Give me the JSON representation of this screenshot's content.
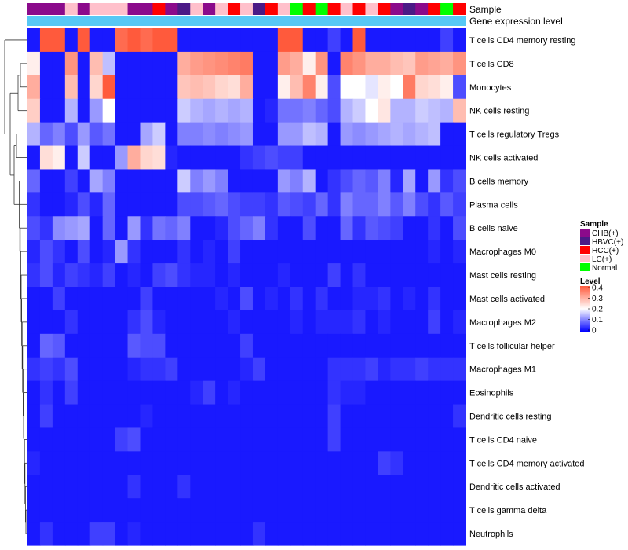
{
  "chart_data": {
    "type": "heatmap",
    "title": "",
    "annotation_labels": [
      "Sample",
      "Gene expression level"
    ],
    "columns": 35,
    "sample_groups": [
      "CHB(+)",
      "CHB(+)",
      "CHB(+)",
      "LC(+)",
      "CHB(+)",
      "LC(+)",
      "LC(+)",
      "LC(+)",
      "CHB(+)",
      "CHB(+)",
      "HCC(+)",
      "CHB(+)",
      "HBVC(+)",
      "LC(+)",
      "CHB(+)",
      "LC(+)",
      "HCC(+)",
      "LC(+)",
      "HBVC(+)",
      "HCC(+)",
      "LC(+)",
      "Normal",
      "HCC(+)",
      "Normal",
      "HCC(+)",
      "LC(+)",
      "HCC(+)",
      "LC(+)",
      "HCC(+)",
      "CHB(+)",
      "HBVC(+)",
      "CHB(+)",
      "HCC(+)",
      "Normal",
      "HCC(+)"
    ],
    "rows": [
      "T cells CD4 memory resting",
      "T cells CD8",
      "Monocytes",
      "NK cells resting",
      "T cells regulatory  Tregs",
      "NK cells activated",
      "B cells memory",
      "Plasma cells",
      "B cells naive",
      "Macrophages M0",
      "Mast cells resting",
      "Mast cells activated",
      "Macrophages M2",
      "T cells follicular helper",
      "Macrophages M1",
      "Eosinophils",
      "Dendritic cells resting",
      "T cells CD4 naive",
      "T cells CD4 memory activated",
      "Dendritic cells activated",
      "T cells gamma delta",
      "Neutrophils"
    ],
    "values": [
      [
        0.02,
        0.4,
        0.4,
        0.02,
        0.4,
        0.02,
        0.02,
        0.38,
        0.4,
        0.38,
        0.4,
        0.4,
        0.02,
        0.02,
        0.02,
        0.02,
        0.02,
        0.02,
        0.02,
        0.02,
        0.4,
        0.4,
        0.02,
        0.02,
        0.05,
        0.02,
        0.4,
        0.02,
        0.02,
        0.02,
        0.02,
        0.02,
        0.02,
        0.05,
        0.02
      ],
      [
        0.22,
        0.02,
        0.02,
        0.33,
        0.02,
        0.28,
        0.15,
        0.02,
        0.02,
        0.02,
        0.02,
        0.02,
        0.3,
        0.32,
        0.33,
        0.34,
        0.35,
        0.36,
        0.02,
        0.02,
        0.32,
        0.3,
        0.22,
        0.33,
        0.02,
        0.35,
        0.33,
        0.3,
        0.3,
        0.28,
        0.27,
        0.32,
        0.31,
        0.3,
        0.33
      ],
      [
        0.3,
        0.02,
        0.02,
        0.28,
        0.02,
        0.25,
        0.4,
        0.02,
        0.02,
        0.02,
        0.02,
        0.02,
        0.27,
        0.28,
        0.27,
        0.25,
        0.24,
        0.3,
        0.02,
        0.02,
        0.22,
        0.28,
        0.35,
        0.22,
        0.06,
        0.2,
        0.2,
        0.18,
        0.22,
        0.2,
        0.36,
        0.25,
        0.24,
        0.22,
        0.06
      ],
      [
        0.26,
        0.02,
        0.02,
        0.14,
        0.02,
        0.12,
        0.2,
        0.02,
        0.02,
        0.02,
        0.02,
        0.02,
        0.16,
        0.14,
        0.13,
        0.14,
        0.13,
        0.14,
        0.02,
        0.03,
        0.09,
        0.09,
        0.1,
        0.08,
        0.06,
        0.14,
        0.16,
        0.2,
        0.23,
        0.14,
        0.14,
        0.16,
        0.15,
        0.14,
        0.28
      ],
      [
        0.14,
        0.08,
        0.1,
        0.06,
        0.12,
        0.07,
        0.09,
        0.02,
        0.02,
        0.13,
        0.16,
        0.02,
        0.1,
        0.1,
        0.11,
        0.1,
        0.11,
        0.12,
        0.02,
        0.02,
        0.12,
        0.12,
        0.15,
        0.14,
        0.02,
        0.12,
        0.11,
        0.12,
        0.13,
        0.14,
        0.13,
        0.14,
        0.15,
        0.02,
        0.02
      ],
      [
        0.02,
        0.24,
        0.22,
        0.02,
        0.16,
        0.02,
        0.02,
        0.12,
        0.3,
        0.25,
        0.24,
        0.03,
        0.02,
        0.02,
        0.02,
        0.02,
        0.02,
        0.04,
        0.05,
        0.06,
        0.05,
        0.05,
        0.02,
        0.02,
        0.02,
        0.02,
        0.02,
        0.02,
        0.02,
        0.02,
        0.02,
        0.02,
        0.02,
        0.02,
        0.02
      ],
      [
        0.08,
        0.02,
        0.02,
        0.05,
        0.02,
        0.13,
        0.1,
        0.02,
        0.02,
        0.02,
        0.02,
        0.02,
        0.16,
        0.1,
        0.12,
        0.1,
        0.02,
        0.02,
        0.02,
        0.02,
        0.12,
        0.1,
        0.14,
        0.02,
        0.04,
        0.06,
        0.08,
        0.07,
        0.1,
        0.03,
        0.13,
        0.02,
        0.12,
        0.04,
        0.06
      ],
      [
        0.04,
        0.02,
        0.02,
        0.03,
        0.06,
        0.03,
        0.08,
        0.02,
        0.02,
        0.02,
        0.02,
        0.02,
        0.06,
        0.06,
        0.07,
        0.08,
        0.06,
        0.05,
        0.05,
        0.04,
        0.07,
        0.06,
        0.05,
        0.08,
        0.04,
        0.1,
        0.08,
        0.08,
        0.1,
        0.07,
        0.1,
        0.06,
        0.04,
        0.07,
        0.05
      ],
      [
        0.06,
        0.04,
        0.11,
        0.12,
        0.13,
        0.02,
        0.08,
        0.02,
        0.12,
        0.04,
        0.09,
        0.08,
        0.1,
        0.02,
        0.02,
        0.03,
        0.06,
        0.08,
        0.1,
        0.04,
        0.02,
        0.02,
        0.06,
        0.02,
        0.02,
        0.08,
        0.04,
        0.07,
        0.06,
        0.05,
        0.02,
        0.02,
        0.04,
        0.02,
        0.06
      ],
      [
        0.03,
        0.06,
        0.04,
        0.02,
        0.06,
        0.02,
        0.03,
        0.12,
        0.04,
        0.02,
        0.02,
        0.02,
        0.04,
        0.02,
        0.03,
        0.02,
        0.05,
        0.02,
        0.02,
        0.02,
        0.02,
        0.02,
        0.02,
        0.02,
        0.02,
        0.02,
        0.02,
        0.02,
        0.02,
        0.02,
        0.02,
        0.02,
        0.03,
        0.02,
        0.03
      ],
      [
        0.04,
        0.06,
        0.03,
        0.05,
        0.04,
        0.03,
        0.05,
        0.02,
        0.03,
        0.02,
        0.05,
        0.06,
        0.04,
        0.03,
        0.03,
        0.02,
        0.03,
        0.02,
        0.02,
        0.02,
        0.03,
        0.02,
        0.02,
        0.02,
        0.05,
        0.02,
        0.04,
        0.02,
        0.02,
        0.02,
        0.02,
        0.02,
        0.02,
        0.02,
        0.02
      ],
      [
        0.02,
        0.02,
        0.05,
        0.02,
        0.02,
        0.02,
        0.02,
        0.02,
        0.02,
        0.05,
        0.02,
        0.02,
        0.02,
        0.02,
        0.02,
        0.03,
        0.02,
        0.06,
        0.02,
        0.03,
        0.02,
        0.04,
        0.02,
        0.04,
        0.02,
        0.02,
        0.03,
        0.03,
        0.04,
        0.02,
        0.03,
        0.02,
        0.04,
        0.02,
        0.02
      ],
      [
        0.02,
        0.02,
        0.02,
        0.04,
        0.02,
        0.02,
        0.02,
        0.02,
        0.04,
        0.06,
        0.03,
        0.02,
        0.02,
        0.02,
        0.02,
        0.02,
        0.03,
        0.02,
        0.02,
        0.02,
        0.02,
        0.03,
        0.02,
        0.03,
        0.03,
        0.03,
        0.04,
        0.02,
        0.03,
        0.02,
        0.02,
        0.02,
        0.05,
        0.02,
        0.03
      ],
      [
        0.02,
        0.08,
        0.07,
        0.02,
        0.02,
        0.02,
        0.02,
        0.02,
        0.07,
        0.06,
        0.06,
        0.02,
        0.02,
        0.02,
        0.02,
        0.02,
        0.02,
        0.05,
        0.02,
        0.02,
        0.02,
        0.02,
        0.02,
        0.02,
        0.02,
        0.02,
        0.02,
        0.02,
        0.02,
        0.02,
        0.02,
        0.02,
        0.02,
        0.02,
        0.02
      ],
      [
        0.04,
        0.05,
        0.04,
        0.06,
        0.02,
        0.02,
        0.02,
        0.02,
        0.03,
        0.04,
        0.04,
        0.05,
        0.02,
        0.02,
        0.02,
        0.02,
        0.02,
        0.03,
        0.05,
        0.02,
        0.02,
        0.02,
        0.02,
        0.02,
        0.04,
        0.04,
        0.04,
        0.05,
        0.03,
        0.04,
        0.04,
        0.05,
        0.04,
        0.04,
        0.04
      ],
      [
        0.02,
        0.04,
        0.02,
        0.05,
        0.02,
        0.02,
        0.02,
        0.02,
        0.02,
        0.02,
        0.02,
        0.02,
        0.02,
        0.03,
        0.05,
        0.02,
        0.03,
        0.02,
        0.02,
        0.02,
        0.02,
        0.02,
        0.02,
        0.02,
        0.04,
        0.03,
        0.03,
        0.02,
        0.02,
        0.02,
        0.02,
        0.02,
        0.02,
        0.02,
        0.02
      ],
      [
        0.02,
        0.05,
        0.02,
        0.02,
        0.02,
        0.02,
        0.02,
        0.02,
        0.02,
        0.03,
        0.02,
        0.02,
        0.02,
        0.02,
        0.02,
        0.02,
        0.02,
        0.02,
        0.02,
        0.02,
        0.02,
        0.02,
        0.02,
        0.02,
        0.05,
        0.02,
        0.02,
        0.02,
        0.02,
        0.02,
        0.02,
        0.02,
        0.02,
        0.02,
        0.04
      ],
      [
        0.02,
        0.02,
        0.02,
        0.02,
        0.02,
        0.02,
        0.02,
        0.05,
        0.06,
        0.02,
        0.02,
        0.02,
        0.02,
        0.02,
        0.02,
        0.02,
        0.02,
        0.02,
        0.02,
        0.02,
        0.02,
        0.02,
        0.02,
        0.02,
        0.05,
        0.02,
        0.02,
        0.02,
        0.02,
        0.02,
        0.02,
        0.02,
        0.02,
        0.02,
        0.02
      ],
      [
        0.03,
        0.02,
        0.02,
        0.02,
        0.02,
        0.02,
        0.02,
        0.02,
        0.02,
        0.02,
        0.02,
        0.02,
        0.02,
        0.02,
        0.02,
        0.02,
        0.02,
        0.02,
        0.02,
        0.02,
        0.02,
        0.02,
        0.02,
        0.02,
        0.02,
        0.02,
        0.02,
        0.02,
        0.05,
        0.04,
        0.02,
        0.02,
        0.02,
        0.02,
        0.02
      ],
      [
        0.02,
        0.02,
        0.02,
        0.02,
        0.02,
        0.02,
        0.02,
        0.02,
        0.04,
        0.02,
        0.02,
        0.02,
        0.04,
        0.02,
        0.02,
        0.02,
        0.02,
        0.02,
        0.02,
        0.02,
        0.02,
        0.02,
        0.02,
        0.02,
        0.02,
        0.02,
        0.02,
        0.02,
        0.02,
        0.02,
        0.02,
        0.02,
        0.02,
        0.02,
        0.02
      ],
      [
        0.02,
        0.02,
        0.02,
        0.02,
        0.02,
        0.02,
        0.02,
        0.02,
        0.02,
        0.02,
        0.02,
        0.02,
        0.02,
        0.02,
        0.02,
        0.02,
        0.02,
        0.02,
        0.02,
        0.02,
        0.02,
        0.02,
        0.02,
        0.02,
        0.02,
        0.02,
        0.02,
        0.02,
        0.02,
        0.02,
        0.02,
        0.02,
        0.02,
        0.02,
        0.02
      ],
      [
        0.02,
        0.04,
        0.02,
        0.02,
        0.02,
        0.05,
        0.05,
        0.02,
        0.03,
        0.02,
        0.02,
        0.02,
        0.02,
        0.02,
        0.02,
        0.02,
        0.02,
        0.02,
        0.04,
        0.02,
        0.02,
        0.02,
        0.02,
        0.02,
        0.02,
        0.02,
        0.02,
        0.02,
        0.02,
        0.02,
        0.02,
        0.02,
        0.02,
        0.02,
        0.02
      ]
    ],
    "scale": {
      "min": 0,
      "max": 0.4,
      "low": "#0000ff",
      "mid": "#ffffff",
      "high": "#ff5a3c"
    },
    "legend_sample": {
      "title": "Sample",
      "items": [
        {
          "label": "CHB(+)",
          "color": "#8b0a8b"
        },
        {
          "label": "HBVC(+)",
          "color": "#4b1a86"
        },
        {
          "label": "HCC(+)",
          "color": "#ff0000"
        },
        {
          "label": "LC(+)",
          "color": "#ffc0cb"
        },
        {
          "label": "Normal",
          "color": "#00ff00"
        }
      ]
    },
    "legend_level": {
      "title": "Level",
      "ticks": [
        "0.4",
        "0.3",
        "0.2",
        "0.1",
        "0"
      ]
    },
    "expression_bar_color": "#57c8f5"
  }
}
